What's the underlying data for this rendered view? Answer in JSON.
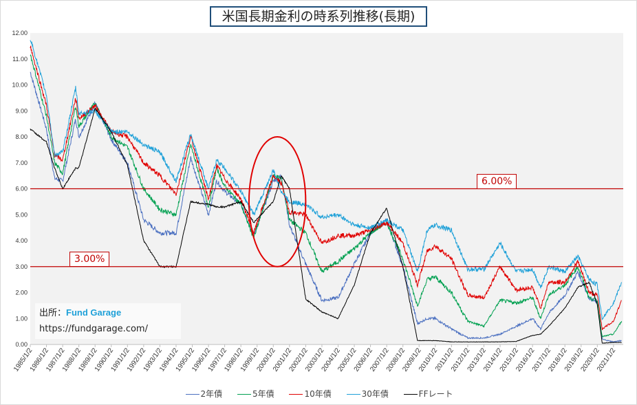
{
  "chart_data": {
    "type": "line",
    "title": "米国長期金利の時系列推移(長期)",
    "xlabel": "",
    "ylabel": "",
    "ylim": [
      0,
      12
    ],
    "yticks": [
      "0.00",
      "1.00",
      "2.00",
      "3.00",
      "4.00",
      "5.00",
      "6.00",
      "7.00",
      "8.00",
      "9.00",
      "10.00",
      "11.00",
      "12.00"
    ],
    "xticks": [
      "1985/1/2",
      "1986/1/2",
      "1987/1/2",
      "1988/1/2",
      "1989/1/2",
      "1990/1/2",
      "1991/1/2",
      "1992/1/2",
      "1993/1/2",
      "1994/1/2",
      "1995/1/2",
      "1996/1/2",
      "1997/1/2",
      "1998/1/2",
      "1999/1/2",
      "2000/1/2",
      "2001/1/2",
      "2002/1/2",
      "2003/1/2",
      "2004/1/2",
      "2005/1/2",
      "2006/1/2",
      "2007/1/2",
      "2008/1/2",
      "2009/1/2",
      "2010/1/2",
      "2011/1/2",
      "2012/1/2",
      "2013/1/2",
      "2014/1/2",
      "2015/1/2",
      "2016/1/2",
      "2017/1/2",
      "2018/1/2",
      "2019/1/2",
      "2020/1/2",
      "2021/1/2"
    ],
    "grid": false,
    "legend_position": "bottom",
    "x": [
      1985,
      1986,
      1986.5,
      1987,
      1987.8,
      1988,
      1989,
      1990,
      1991,
      1992,
      1993,
      1994,
      1994.9,
      1996,
      1996.5,
      1997,
      1998,
      1998.8,
      2000,
      2000.5,
      2001,
      2002,
      2003,
      2004,
      2005,
      2006,
      2007,
      2008,
      2008.9,
      2009.5,
      2010,
      2011,
      2012,
      2013,
      2014,
      2015,
      2016,
      2016.5,
      2017,
      2018,
      2018.8,
      2019.5,
      2020,
      2020.3,
      2021,
      2021.5
    ],
    "series": [
      {
        "name": "2年債",
        "color": "#4a6fc0",
        "values": [
          10.5,
          8.3,
          6.4,
          6.3,
          8.7,
          8.0,
          9.3,
          7.9,
          7.0,
          4.8,
          4.3,
          4.3,
          7.2,
          5.0,
          6.3,
          5.9,
          5.4,
          4.2,
          6.3,
          6.5,
          4.6,
          3.1,
          1.7,
          1.8,
          3.1,
          4.3,
          4.8,
          3.0,
          0.8,
          1.0,
          1.0,
          0.6,
          0.25,
          0.25,
          0.4,
          0.7,
          1.0,
          0.6,
          1.2,
          1.9,
          2.8,
          1.8,
          1.6,
          0.2,
          0.1,
          0.15
        ]
      },
      {
        "name": "5年債",
        "color": "#00a050",
        "values": [
          11.2,
          8.8,
          7.0,
          6.6,
          9.2,
          8.4,
          9.3,
          8.0,
          7.6,
          6.0,
          5.2,
          5.0,
          7.7,
          5.3,
          6.8,
          6.1,
          5.4,
          4.1,
          6.5,
          6.4,
          4.8,
          4.3,
          2.8,
          3.2,
          3.7,
          4.3,
          4.7,
          3.3,
          1.5,
          2.5,
          2.6,
          2.0,
          0.9,
          0.7,
          1.7,
          1.6,
          1.8,
          1.0,
          1.9,
          2.3,
          3.0,
          1.8,
          1.7,
          0.3,
          0.4,
          0.9
        ]
      },
      {
        "name": "10年債",
        "color": "#e00000",
        "values": [
          11.5,
          9.2,
          7.3,
          7.1,
          9.5,
          8.7,
          9.2,
          8.2,
          8.0,
          7.0,
          6.5,
          5.8,
          8.0,
          5.6,
          6.9,
          6.4,
          5.6,
          4.3,
          6.5,
          6.2,
          5.1,
          5.0,
          3.9,
          4.2,
          4.2,
          4.4,
          4.7,
          3.9,
          2.3,
          3.6,
          3.8,
          3.3,
          1.9,
          1.8,
          3.0,
          2.1,
          2.2,
          1.4,
          2.4,
          2.4,
          3.2,
          2.0,
          1.9,
          0.6,
          0.9,
          1.7
        ]
      },
      {
        "name": "30年債",
        "color": "#1ea0d8",
        "values": [
          11.8,
          9.6,
          7.3,
          7.4,
          9.9,
          8.9,
          9.0,
          8.2,
          8.2,
          7.7,
          7.4,
          6.3,
          8.1,
          6.0,
          7.1,
          6.8,
          5.9,
          5.0,
          6.7,
          5.9,
          5.5,
          5.4,
          4.9,
          5.0,
          4.6,
          4.5,
          4.8,
          4.4,
          2.8,
          4.4,
          4.6,
          4.4,
          2.9,
          2.9,
          3.9,
          2.8,
          2.9,
          2.2,
          3.0,
          2.8,
          3.4,
          2.5,
          2.3,
          1.0,
          1.6,
          2.4
        ]
      },
      {
        "name": "FFレート",
        "color": "#000000",
        "values": [
          8.3,
          7.8,
          6.8,
          6.0,
          6.8,
          6.8,
          9.1,
          8.2,
          6.9,
          4.0,
          3.0,
          3.0,
          5.5,
          5.4,
          5.3,
          5.3,
          5.5,
          4.7,
          5.5,
          6.5,
          6.0,
          1.75,
          1.25,
          1.0,
          2.3,
          4.3,
          5.25,
          3.0,
          0.15,
          0.15,
          0.15,
          0.1,
          0.1,
          0.1,
          0.1,
          0.12,
          0.35,
          0.4,
          0.7,
          1.4,
          2.2,
          2.4,
          1.55,
          0.05,
          0.08,
          0.08
        ]
      }
    ],
    "annotations": [
      {
        "type": "hline",
        "y": 6.0,
        "label": "6.00%",
        "color": "#c00000"
      },
      {
        "type": "hline",
        "y": 3.0,
        "label": "3.00%",
        "color": "#c00000"
      },
      {
        "type": "ellipse",
        "x_range": [
          1998.5,
          2002
        ],
        "y_range": [
          3.0,
          8.0
        ],
        "color": "#e00000"
      }
    ],
    "source_label": "出所：",
    "source_name": "Fund Garage",
    "source_url": "https://fundgarage.com/"
  }
}
